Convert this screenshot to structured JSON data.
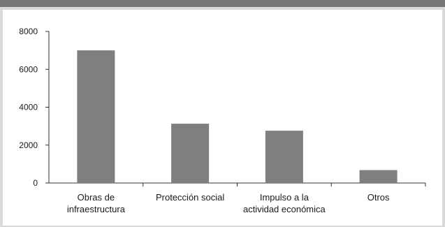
{
  "chart_data": {
    "type": "bar",
    "categories": [
      [
        "Obras de",
        "infraestructura"
      ],
      [
        "Protección social"
      ],
      [
        "Impulso a la",
        "actividad económica"
      ],
      [
        "Otros"
      ]
    ],
    "values": [
      7000,
      3130,
      2760,
      680
    ],
    "ylim": [
      0,
      8000
    ],
    "yticks": [
      0,
      2000,
      4000,
      6000,
      8000
    ],
    "colors": {
      "bar": "#7f7f81",
      "axis": "#333333"
    },
    "grid": false,
    "legend": "none"
  }
}
